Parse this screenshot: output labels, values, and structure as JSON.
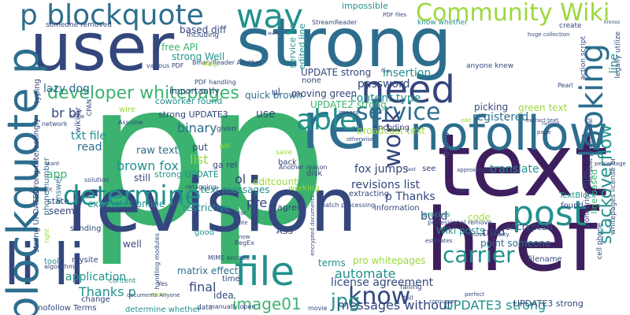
{
  "title": "",
  "palette": {
    "dark_purple": "#3e1f5e",
    "navy": "#34477d",
    "blue": "#2d6e8e",
    "teal": "#21918c",
    "green": "#3bb26f",
    "yellow_green": "#9bd93c",
    "yellow": "#d9e021",
    "light_yellow": "#c8e02a"
  },
  "words": [
    {
      "text": "p",
      "color": "#3bb26f"
    },
    {
      "text": "p",
      "color": "#3bb26f"
    },
    {
      "text": "strong",
      "color": "#2d6e8e"
    },
    {
      "text": "user",
      "color": "#34477d"
    },
    {
      "text": "revision",
      "color": "#34477d"
    },
    {
      "text": "href",
      "color": "#3e1f5e"
    },
    {
      "text": "text",
      "color": "#3e1f5e"
    },
    {
      "text": "nofollow",
      "color": "#2d6e8e"
    },
    {
      "text": "rel",
      "color": "#2d6e8e"
    },
    {
      "text": "li li",
      "color": "#34477d"
    },
    {
      "text": "p blockquote",
      "color": "#2d6e8e"
    },
    {
      "text": "blockquote p",
      "color": "#2d6e8e"
    },
    {
      "text": "Community Wiki",
      "color": "#9bd93c"
    },
    {
      "text": "need",
      "color": "#34477d"
    },
    {
      "text": "way",
      "color": "#21918c"
    },
    {
      "text": "file",
      "color": "#21918c"
    },
    {
      "text": "post",
      "color": "#21918c"
    },
    {
      "text": "determine",
      "color": "#21918c"
    },
    {
      "text": "looking",
      "color": "#2d6e8e"
    },
    {
      "text": "service",
      "color": "#2d6e8e"
    },
    {
      "text": "able",
      "color": "#21918c"
    },
    {
      "text": "carrier",
      "color": "#21918c"
    },
    {
      "text": "know",
      "color": "#34477d"
    },
    {
      "text": "work",
      "color": "#34477d"
    },
    {
      "text": "developer whitepages",
      "color": "#3bb26f"
    },
    {
      "text": "stackoverflow",
      "color": "#21918c"
    },
    {
      "text": "image01",
      "color": "#3bb26f"
    },
    {
      "text": "jpg",
      "color": "#21918c"
    },
    {
      "text": "automate",
      "color": "#21918c"
    },
    {
      "text": "messages without",
      "color": "#34477d"
    },
    {
      "text": "UPDATE3 strong",
      "color": "#21918c"
    },
    {
      "text": "Thanks p",
      "color": "#21918c"
    },
    {
      "text": "application",
      "color": "#21918c"
    },
    {
      "text": "final",
      "color": "#34477d"
    },
    {
      "text": "matrix effect",
      "color": "#2d6e8e"
    },
    {
      "text": "license agreement",
      "color": "#34477d"
    },
    {
      "text": "binary",
      "color": "#2d6e8e"
    },
    {
      "text": "brown fox",
      "color": "#21918c"
    },
    {
      "text": "list",
      "color": "#9bd93c"
    },
    {
      "text": "raw text",
      "color": "#2d6e8e"
    },
    {
      "text": "idea",
      "color": "#34477d"
    },
    {
      "text": "put",
      "color": "#34477d"
    },
    {
      "text": "content type",
      "color": "#21918c"
    },
    {
      "text": "password",
      "color": "#34477d"
    },
    {
      "text": "registered",
      "color": "#2d6e8e"
    },
    {
      "text": "insertion",
      "color": "#21918c"
    },
    {
      "text": "line",
      "color": "#21918c"
    },
    {
      "text": "fox jumps",
      "color": "#34477d"
    },
    {
      "text": "revisions list",
      "color": "#34477d"
    },
    {
      "text": "p Thanks",
      "color": "#34477d"
    },
    {
      "text": "pre",
      "color": "#34477d"
    },
    {
      "text": "ol",
      "color": "#34477d"
    },
    {
      "text": "use",
      "color": "#34477d"
    },
    {
      "text": "read",
      "color": "#2d6e8e"
    },
    {
      "text": "txt file",
      "color": "#21918c"
    },
    {
      "text": "app",
      "color": "#3bb26f"
    },
    {
      "text": "br br",
      "color": "#34477d"
    },
    {
      "text": "lazy dog",
      "color": "#2d6e8e"
    },
    {
      "text": "free API",
      "color": "#3bb26f"
    },
    {
      "text": "strong Well",
      "color": "#21918c"
    },
    {
      "text": "based diff",
      "color": "#34477d"
    },
    {
      "text": "quick brown",
      "color": "#2d6e8e"
    },
    {
      "text": "UPDATE strong",
      "color": "#34477d"
    },
    {
      "text": "moving green",
      "color": "#34477d"
    },
    {
      "text": "UPDATE2 strong",
      "color": "#3bb26f"
    },
    {
      "text": "broadcast text",
      "color": "#9bd93c"
    },
    {
      "text": "picking",
      "color": "#34477d"
    },
    {
      "text": "green text",
      "color": "#9bd93c"
    },
    {
      "text": "translate",
      "color": "#21918c"
    },
    {
      "text": "Wiki posts",
      "color": "#21918c"
    },
    {
      "text": "tried",
      "color": "#34477d"
    },
    {
      "text": "encrypted",
      "color": "#34477d"
    },
    {
      "text": "code",
      "color": "#9bd93c"
    },
    {
      "text": "build",
      "color": "#34477d"
    },
    {
      "text": "point someone",
      "color": "#2d6e8e"
    },
    {
      "text": "pro whitepages",
      "color": "#9bd93c"
    },
    {
      "text": "terms",
      "color": "#21918c"
    },
    {
      "text": "examples online",
      "color": "#21918c"
    },
    {
      "text": "restrictive",
      "color": "#21918c"
    },
    {
      "text": "text messages",
      "color": "#21918c"
    },
    {
      "text": "editcount",
      "color": "#9bd93c"
    },
    {
      "text": "still",
      "color": "#34477d"
    },
    {
      "text": "strong UPDATE",
      "color": "#21918c"
    },
    {
      "text": "strong UPDATE3",
      "color": "#34477d"
    },
    {
      "text": "coworker found",
      "color": "#21918c"
    },
    {
      "text": "importantly",
      "color": "#34477d"
    },
    {
      "text": "someone removed",
      "color": "#34477d"
    },
    {
      "text": "including",
      "color": "#34477d"
    },
    {
      "text": "impossible",
      "color": "#21918c"
    },
    {
      "text": "anyone knew",
      "color": "#34477d"
    },
    {
      "text": "know whether",
      "color": "#21918c"
    },
    {
      "text": "StreamReader",
      "color": "#34477d"
    },
    {
      "text": "PDF files",
      "color": "#34477d"
    },
    {
      "text": "create",
      "color": "#34477d"
    },
    {
      "text": "huge collection",
      "color": "#34477d"
    },
    {
      "text": "action script",
      "color": "#34477d"
    },
    {
      "text": "legally utilize",
      "color": "#34477d"
    },
    {
      "text": "kronoz",
      "color": "#34477d"
    },
    {
      "text": "cell phone",
      "color": "#34477d"
    },
    {
      "text": "whitepages license br",
      "color": "#34477d"
    },
    {
      "text": "line based",
      "color": "#3bb26f"
    },
    {
      "text": "UPDATE3 strong",
      "color": "#34477d"
    },
    {
      "text": "owns",
      "color": "#34477d"
    },
    {
      "text": "HTML",
      "color": "#34477d"
    },
    {
      "text": "agree",
      "color": "#34477d"
    },
    {
      "text": "information",
      "color": "#34477d"
    },
    {
      "text": "AS3",
      "color": "#34477d"
    },
    {
      "text": "good",
      "color": "#21918c"
    },
    {
      "text": "state",
      "color": "#34477d"
    },
    {
      "text": "seem",
      "color": "#34477d"
    },
    {
      "text": "sending",
      "color": "#34477d"
    },
    {
      "text": "well",
      "color": "#34477d"
    },
    {
      "text": "mysite",
      "color": "#34477d"
    },
    {
      "text": "tool",
      "color": "#21918c"
    },
    {
      "text": "answer",
      "color": "#2d6e8e"
    },
    {
      "text": "phone number",
      "color": "#2d6e8e"
    },
    {
      "text": "strong UPDATE2",
      "color": "#34477d"
    },
    {
      "text": "strong Interestingly",
      "color": "#34477d"
    },
    {
      "text": "typing",
      "color": "#34477d"
    },
    {
      "text": "wiki br",
      "color": "#34477d"
    },
    {
      "text": "network",
      "color": "#34477d"
    },
    {
      "text": "change",
      "color": "#34477d"
    },
    {
      "text": "content",
      "color": "#21918c"
    },
    {
      "text": "nofollow Terms",
      "color": "#34477d"
    },
    {
      "text": "determine whether",
      "color": "#21918c"
    },
    {
      "text": "time",
      "color": "#34477d"
    },
    {
      "text": "data",
      "color": "#34477d"
    },
    {
      "text": "manually open",
      "color": "#34477d"
    },
    {
      "text": "movie",
      "color": "#34477d"
    },
    {
      "text": "tell",
      "color": "#34477d"
    },
    {
      "text": "failing",
      "color": "#34477d"
    },
    {
      "text": "filename",
      "color": "#34477d"
    },
    {
      "text": "TextBlock",
      "color": "#21918c"
    },
    {
      "text": "found",
      "color": "#34477d"
    },
    {
      "text": "wondering",
      "color": "#34477d"
    },
    {
      "text": "process",
      "color": "#21918c"
    },
    {
      "text": "service ga",
      "color": "#21918c"
    },
    {
      "text": "edited line",
      "color": "#21918c"
    },
    {
      "text": "ga rel",
      "color": "#34477d"
    },
    {
      "text": "back",
      "color": "#34477d"
    },
    {
      "text": "disk",
      "color": "#34477d"
    },
    {
      "text": "working",
      "color": "#9bd93c"
    },
    {
      "text": "encoding",
      "color": "#34477d"
    },
    {
      "text": "extracting",
      "color": "#34477d"
    },
    {
      "text": "see",
      "color": "#34477d"
    },
    {
      "text": "batch processing",
      "color": "#34477d"
    },
    {
      "text": "professional remove",
      "color": "#34477d"
    },
    {
      "text": "remove security",
      "color": "#34477d"
    },
    {
      "text": "estimates",
      "color": "#34477d"
    },
    {
      "text": "perfect",
      "color": "#34477d"
    },
    {
      "text": "consumer",
      "color": "#34477d"
    },
    {
      "text": "none",
      "color": "#34477d"
    },
    {
      "text": "ul",
      "color": "#34477d"
    },
    {
      "text": "Another reason",
      "color": "#34477d"
    },
    {
      "text": "encrypted documents",
      "color": "#34477d"
    },
    {
      "text": "MIME encode",
      "color": "#34477d"
    },
    {
      "text": "handling modules",
      "color": "#34477d"
    },
    {
      "text": "retagging",
      "color": "#34477d"
    },
    {
      "text": "PDF handling",
      "color": "#34477d"
    },
    {
      "text": "BinaryReader Another",
      "color": "#34477d"
    },
    {
      "text": "various PDF",
      "color": "#34477d"
    },
    {
      "text": "CPAN",
      "color": "#34477d"
    },
    {
      "text": "wire",
      "color": "#9bd93c"
    },
    {
      "text": "Assume",
      "color": "#34477d"
    },
    {
      "text": "help",
      "color": "#9bd93c"
    },
    {
      "text": "warn",
      "color": "#34477d"
    },
    {
      "text": "fine",
      "color": "#34477d"
    },
    {
      "text": "Pearl",
      "color": "#34477d"
    },
    {
      "text": "factor",
      "color": "#34477d"
    },
    {
      "text": "Note",
      "color": "#34477d"
    },
    {
      "text": "RegEx",
      "color": "#34477d"
    },
    {
      "text": "now",
      "color": "#34477d"
    },
    {
      "text": "algorithm",
      "color": "#34477d"
    },
    {
      "text": "right",
      "color": "#9bd93c"
    },
    {
      "text": "Yes",
      "color": "#34477d"
    },
    {
      "text": "owner",
      "color": "#9bd93c"
    },
    {
      "text": "documents Anyone",
      "color": "#34477d"
    },
    {
      "text": "solution",
      "color": "#34477d"
    },
    {
      "text": "want",
      "color": "#34477d"
    },
    {
      "text": "show",
      "color": "#34477d"
    },
    {
      "text": "not",
      "color": "#34477d"
    },
    {
      "text": "Acrobat professional",
      "color": "#34477d"
    },
    {
      "text": "noticed",
      "color": "#34477d"
    },
    {
      "text": "page",
      "color": "#34477d"
    },
    {
      "text": "extract text",
      "color": "#34477d"
    },
    {
      "text": "percentage",
      "color": "#34477d"
    },
    {
      "text": "approximation",
      "color": "#34477d"
    },
    {
      "text": "text",
      "color": "#34477d"
    },
    {
      "text": "top",
      "color": "#34477d"
    },
    {
      "text": "images",
      "color": "#34477d"
    },
    {
      "text": "otherwise",
      "color": "#34477d"
    },
    {
      "text": "edit",
      "color": "#9bd93c"
    },
    {
      "text": "given",
      "color": "#34477d"
    },
    {
      "text": "will",
      "color": "#9bd93c"
    },
    {
      "text": "save",
      "color": "#9bd93c"
    },
    {
      "text": "body",
      "color": "#34477d"
    },
    {
      "text": "may",
      "color": "#34477d"
    },
    {
      "text": "free",
      "color": "#9bd93c"
    },
    {
      "text": "c",
      "color": "#34477d"
    },
    {
      "text": "action",
      "color": "#34477d"
    }
  ]
}
